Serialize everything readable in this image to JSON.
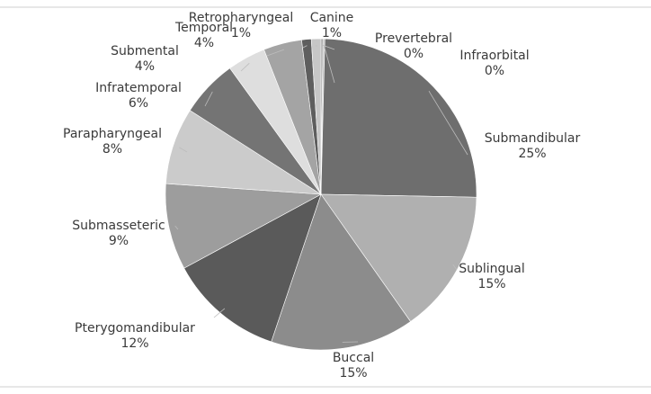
{
  "chart_data": {
    "type": "pie",
    "title": "",
    "start_angle_deg": 0,
    "direction": "clockwise",
    "slices": [
      {
        "name": "Prevertebral",
        "value": 0.2,
        "label": "0%",
        "color": "#909090"
      },
      {
        "name": "Infraorbital",
        "value": 0.2,
        "label": "0%",
        "color": "#c4c4c4"
      },
      {
        "name": "Submandibular",
        "value": 25,
        "label": "25%",
        "color": "#6e6e6e"
      },
      {
        "name": "Sublingual",
        "value": 15,
        "label": "15%",
        "color": "#b0b0b0"
      },
      {
        "name": "Buccal",
        "value": 15,
        "label": "15%",
        "color": "#8c8c8c"
      },
      {
        "name": "Pterygomandibular",
        "value": 12,
        "label": "12%",
        "color": "#5a5a5a"
      },
      {
        "name": "Submasseteric",
        "value": 9,
        "label": "9%",
        "color": "#9d9d9d"
      },
      {
        "name": "Parapharyngeal",
        "value": 8,
        "label": "8%",
        "color": "#cbcbcb"
      },
      {
        "name": "Infratemporal",
        "value": 6,
        "label": "6%",
        "color": "#747474"
      },
      {
        "name": "Submental",
        "value": 4,
        "label": "4%",
        "color": "#dedede"
      },
      {
        "name": "Temporal",
        "value": 4,
        "label": "4%",
        "color": "#a4a4a4"
      },
      {
        "name": "Retropharyngeal",
        "value": 1,
        "label": "1%",
        "color": "#5e5e5e"
      },
      {
        "name": "Canine",
        "value": 1,
        "label": "1%",
        "color": "#c6c6c6"
      }
    ]
  }
}
